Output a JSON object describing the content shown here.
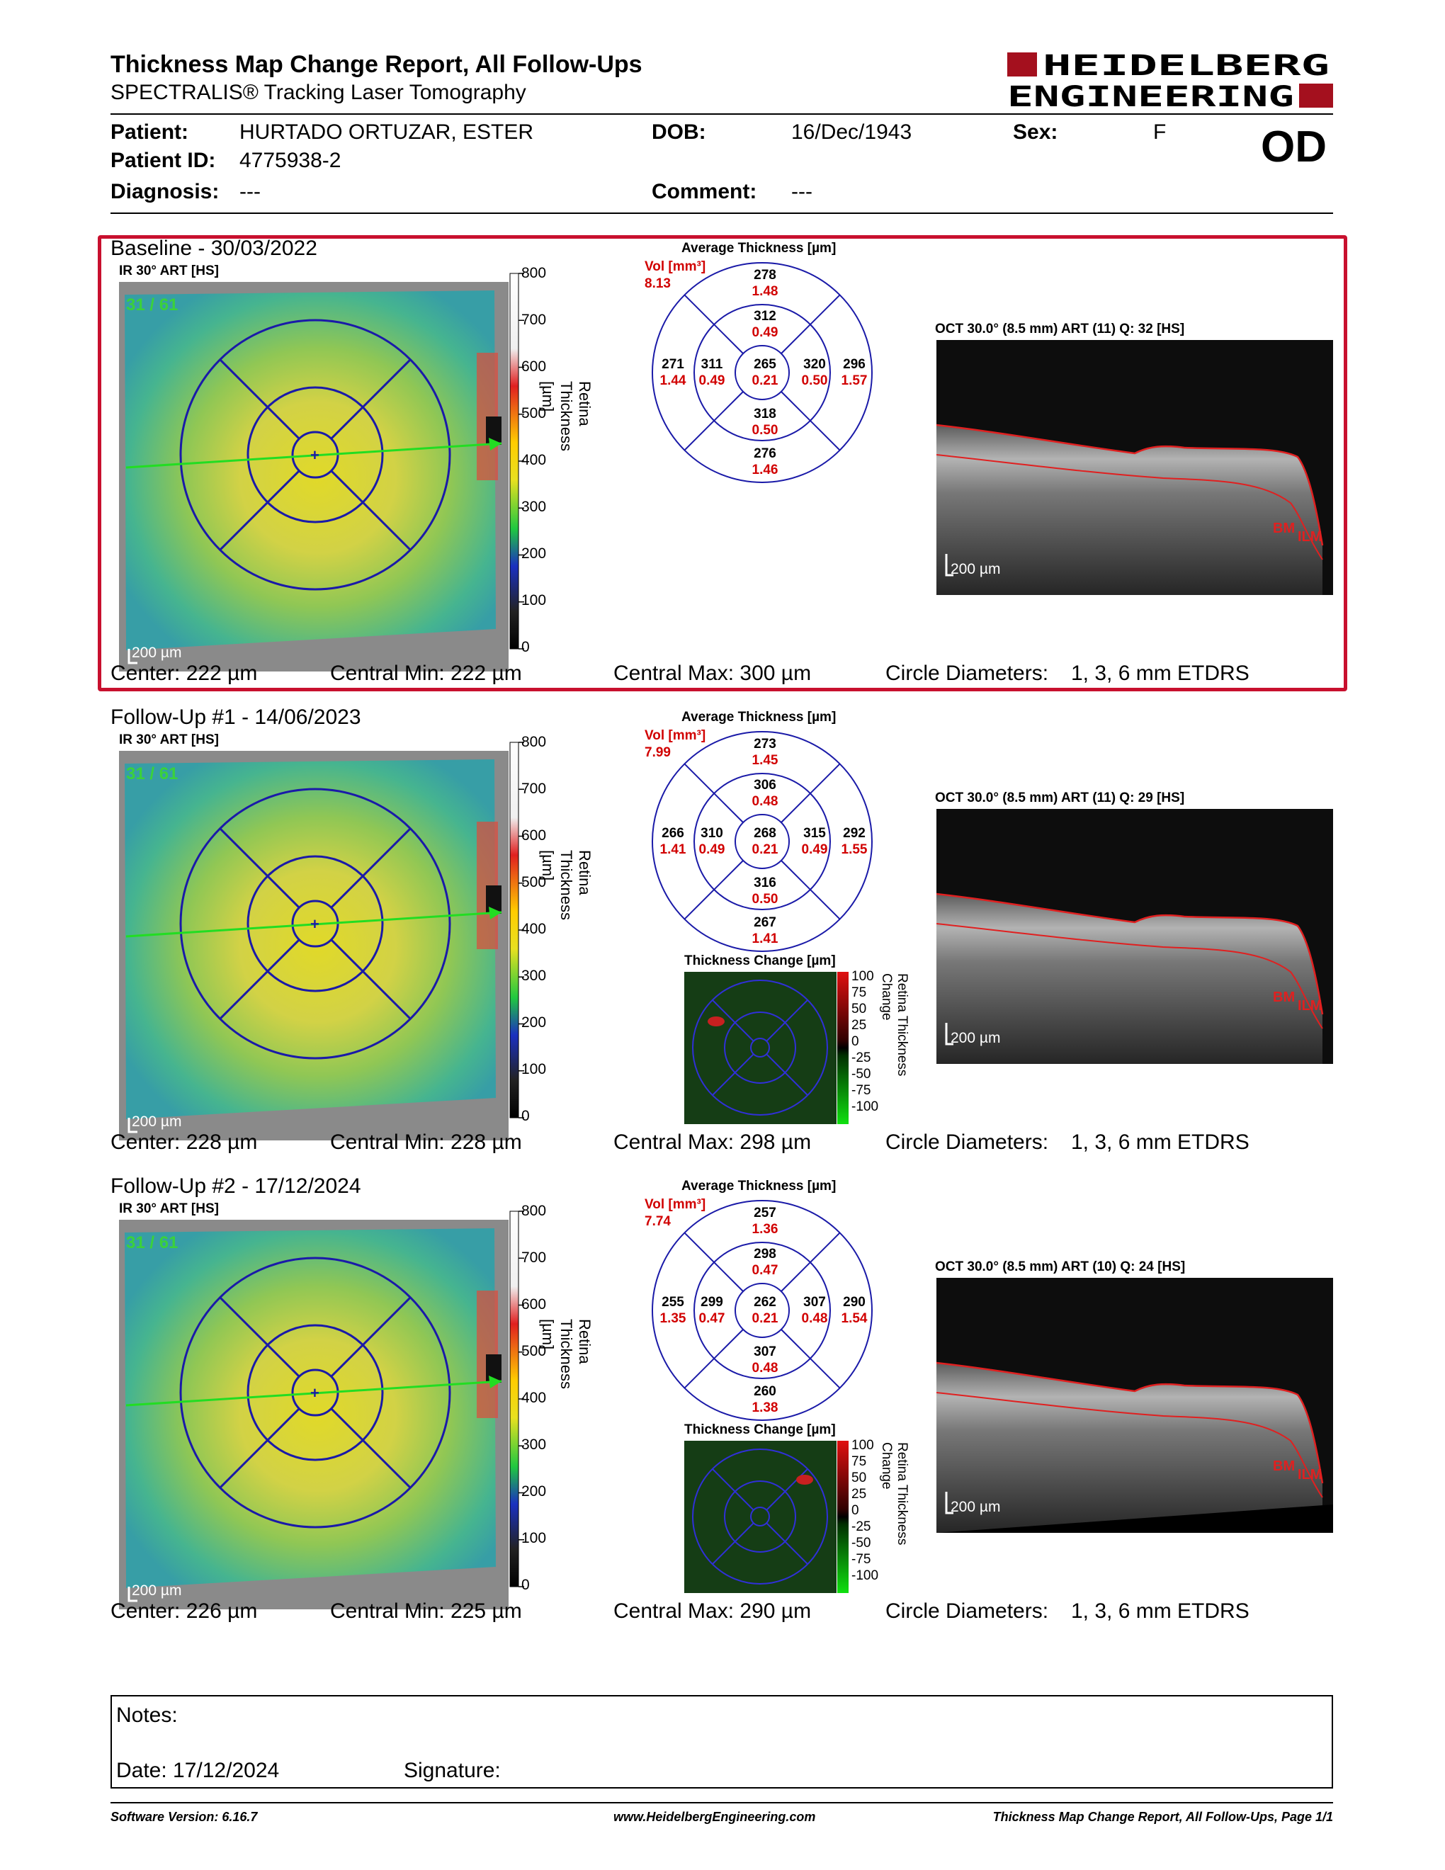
{
  "header": {
    "title": "Thickness Map Change Report, All Follow-Ups",
    "subtitle": "SPECTRALIS® Tracking Laser Tomography",
    "logo_line1": "HEIDELBERG",
    "logo_line2": "ENGINEERING",
    "eye": "OD"
  },
  "patient": {
    "patient_label": "Patient:",
    "patient_value": "HURTADO ORTUZAR, ESTER",
    "id_label": "Patient ID:",
    "id_value": "4775938-2",
    "diagnosis_label": "Diagnosis:",
    "diagnosis_value": "---",
    "dob_label": "DOB:",
    "dob_value": "16/Dec/1943",
    "comment_label": "Comment:",
    "comment_value": "---",
    "sex_label": "Sex:",
    "sex_value": "F"
  },
  "common": {
    "ir_label": "IR 30° ART [HS]",
    "frame": "31 / 61",
    "scalebar": "200 µm",
    "scale_ticks": [
      "800",
      "700",
      "600",
      "500",
      "400",
      "300",
      "200",
      "100",
      "0"
    ],
    "scale_axis": "Retina  Thickness [µm]",
    "avg_title": "Average Thickness [µm]",
    "vol_label": "Vol [mm³]",
    "oct_scalebar": "200 µm",
    "bm": "BM",
    "ilm": "ILM",
    "change_title": "Thickness Change [µm]",
    "change_ticks": [
      "100",
      "75",
      "50",
      "25",
      "0",
      "-25",
      "-50",
      "-75",
      "-100"
    ],
    "change_axis": "Retina Thickness Change",
    "circle_label": "Circle Diameters:",
    "circle_value": "1, 3, 6 mm ETDRS"
  },
  "sections": [
    {
      "title": "Baseline - 30/03/2022",
      "vol": "8.13",
      "oct_label": "OCT 30.0° (8.5 mm) ART (11) Q: 32 [HS]",
      "grid": {
        "center": [
          "265",
          "0.21"
        ],
        "inner_sup": [
          "312",
          "0.49"
        ],
        "inner_inf": [
          "318",
          "0.50"
        ],
        "inner_tmp": [
          "311",
          "0.49"
        ],
        "inner_nas": [
          "320",
          "0.50"
        ],
        "outer_sup": [
          "278",
          "1.48"
        ],
        "outer_inf": [
          "276",
          "1.46"
        ],
        "outer_tmp": [
          "271",
          "1.44"
        ],
        "outer_nas": [
          "296",
          "1.57"
        ]
      },
      "center": "Center: 222 µm",
      "central_min": "Central Min: 222 µm",
      "central_max": "Central Max: 300 µm",
      "has_change": false
    },
    {
      "title": "Follow-Up #1 - 14/06/2023",
      "vol": "7.99",
      "oct_label": "OCT 30.0° (8.5 mm) ART (11) Q: 29 [HS]",
      "grid": {
        "center": [
          "268",
          "0.21"
        ],
        "inner_sup": [
          "306",
          "0.48"
        ],
        "inner_inf": [
          "316",
          "0.50"
        ],
        "inner_tmp": [
          "310",
          "0.49"
        ],
        "inner_nas": [
          "315",
          "0.49"
        ],
        "outer_sup": [
          "273",
          "1.45"
        ],
        "outer_inf": [
          "267",
          "1.41"
        ],
        "outer_tmp": [
          "266",
          "1.41"
        ],
        "outer_nas": [
          "292",
          "1.55"
        ]
      },
      "center": "Center: 228 µm",
      "central_min": "Central Min: 228 µm",
      "central_max": "Central Max: 298 µm",
      "has_change": true
    },
    {
      "title": "Follow-Up #2 - 17/12/2024",
      "vol": "7.74",
      "oct_label": "OCT 30.0° (8.5 mm) ART (10) Q: 24 [HS]",
      "grid": {
        "center": [
          "262",
          "0.21"
        ],
        "inner_sup": [
          "298",
          "0.47"
        ],
        "inner_inf": [
          "307",
          "0.48"
        ],
        "inner_tmp": [
          "299",
          "0.47"
        ],
        "inner_nas": [
          "307",
          "0.48"
        ],
        "outer_sup": [
          "257",
          "1.36"
        ],
        "outer_inf": [
          "260",
          "1.38"
        ],
        "outer_tmp": [
          "255",
          "1.35"
        ],
        "outer_nas": [
          "290",
          "1.54"
        ]
      },
      "center": "Center: 226 µm",
      "central_min": "Central Min: 225 µm",
      "central_max": "Central Max: 290 µm",
      "has_change": true
    }
  ],
  "notes": {
    "notes_label": "Notes:",
    "date_label": "Date: 17/12/2024",
    "signature_label": "Signature:"
  },
  "footer": {
    "software": "Software Version: 6.16.7",
    "website": "www.HeidelbergEngineering.com",
    "page": "Thickness Map Change Report, All Follow-Ups, Page 1/1"
  },
  "colors": {
    "accent_red": "#c8102e",
    "grid_blue": "#1a1aa8",
    "value_red": "#d10000"
  }
}
